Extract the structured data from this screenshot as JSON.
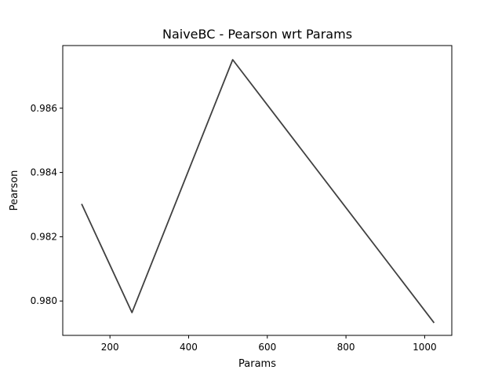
{
  "chart_data": {
    "type": "line",
    "title": "NaiveBC - Pearson wrt Params",
    "xlabel": "Params",
    "ylabel": "Pearson",
    "xlim": [
      80,
      1069
    ],
    "ylim": [
      0.97893,
      0.98795
    ],
    "xticks": [
      200,
      400,
      600,
      800,
      1000
    ],
    "yticks": [
      0.98,
      0.982,
      0.984,
      0.986
    ],
    "xtick_labels": [
      "200",
      "400",
      "600",
      "800",
      "1000"
    ],
    "ytick_labels": [
      "0.980",
      "0.982",
      "0.984",
      "0.986"
    ],
    "grid": false,
    "legend": "none",
    "series": [
      {
        "color": "#404040",
        "x": [
          128,
          256,
          512,
          1024
        ],
        "y": [
          0.98302,
          0.97964,
          0.98751,
          0.97932
        ]
      }
    ]
  }
}
